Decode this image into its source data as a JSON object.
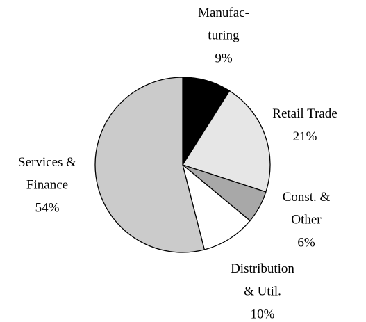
{
  "chart_data": {
    "type": "pie",
    "categories": [
      "Manufac-\nturing",
      "Retail Trade",
      "Const. &\nOther",
      "Distribution\n& Util.",
      "Services &\nFinance"
    ],
    "values": [
      9,
      21,
      6,
      10,
      54
    ],
    "value_labels": [
      "9%",
      "21%",
      "6%",
      "10%",
      "54%"
    ],
    "colors": [
      "#000000",
      "#e6e6e6",
      "#a8a8a8",
      "#ffffff",
      "#cbcbcb"
    ]
  }
}
